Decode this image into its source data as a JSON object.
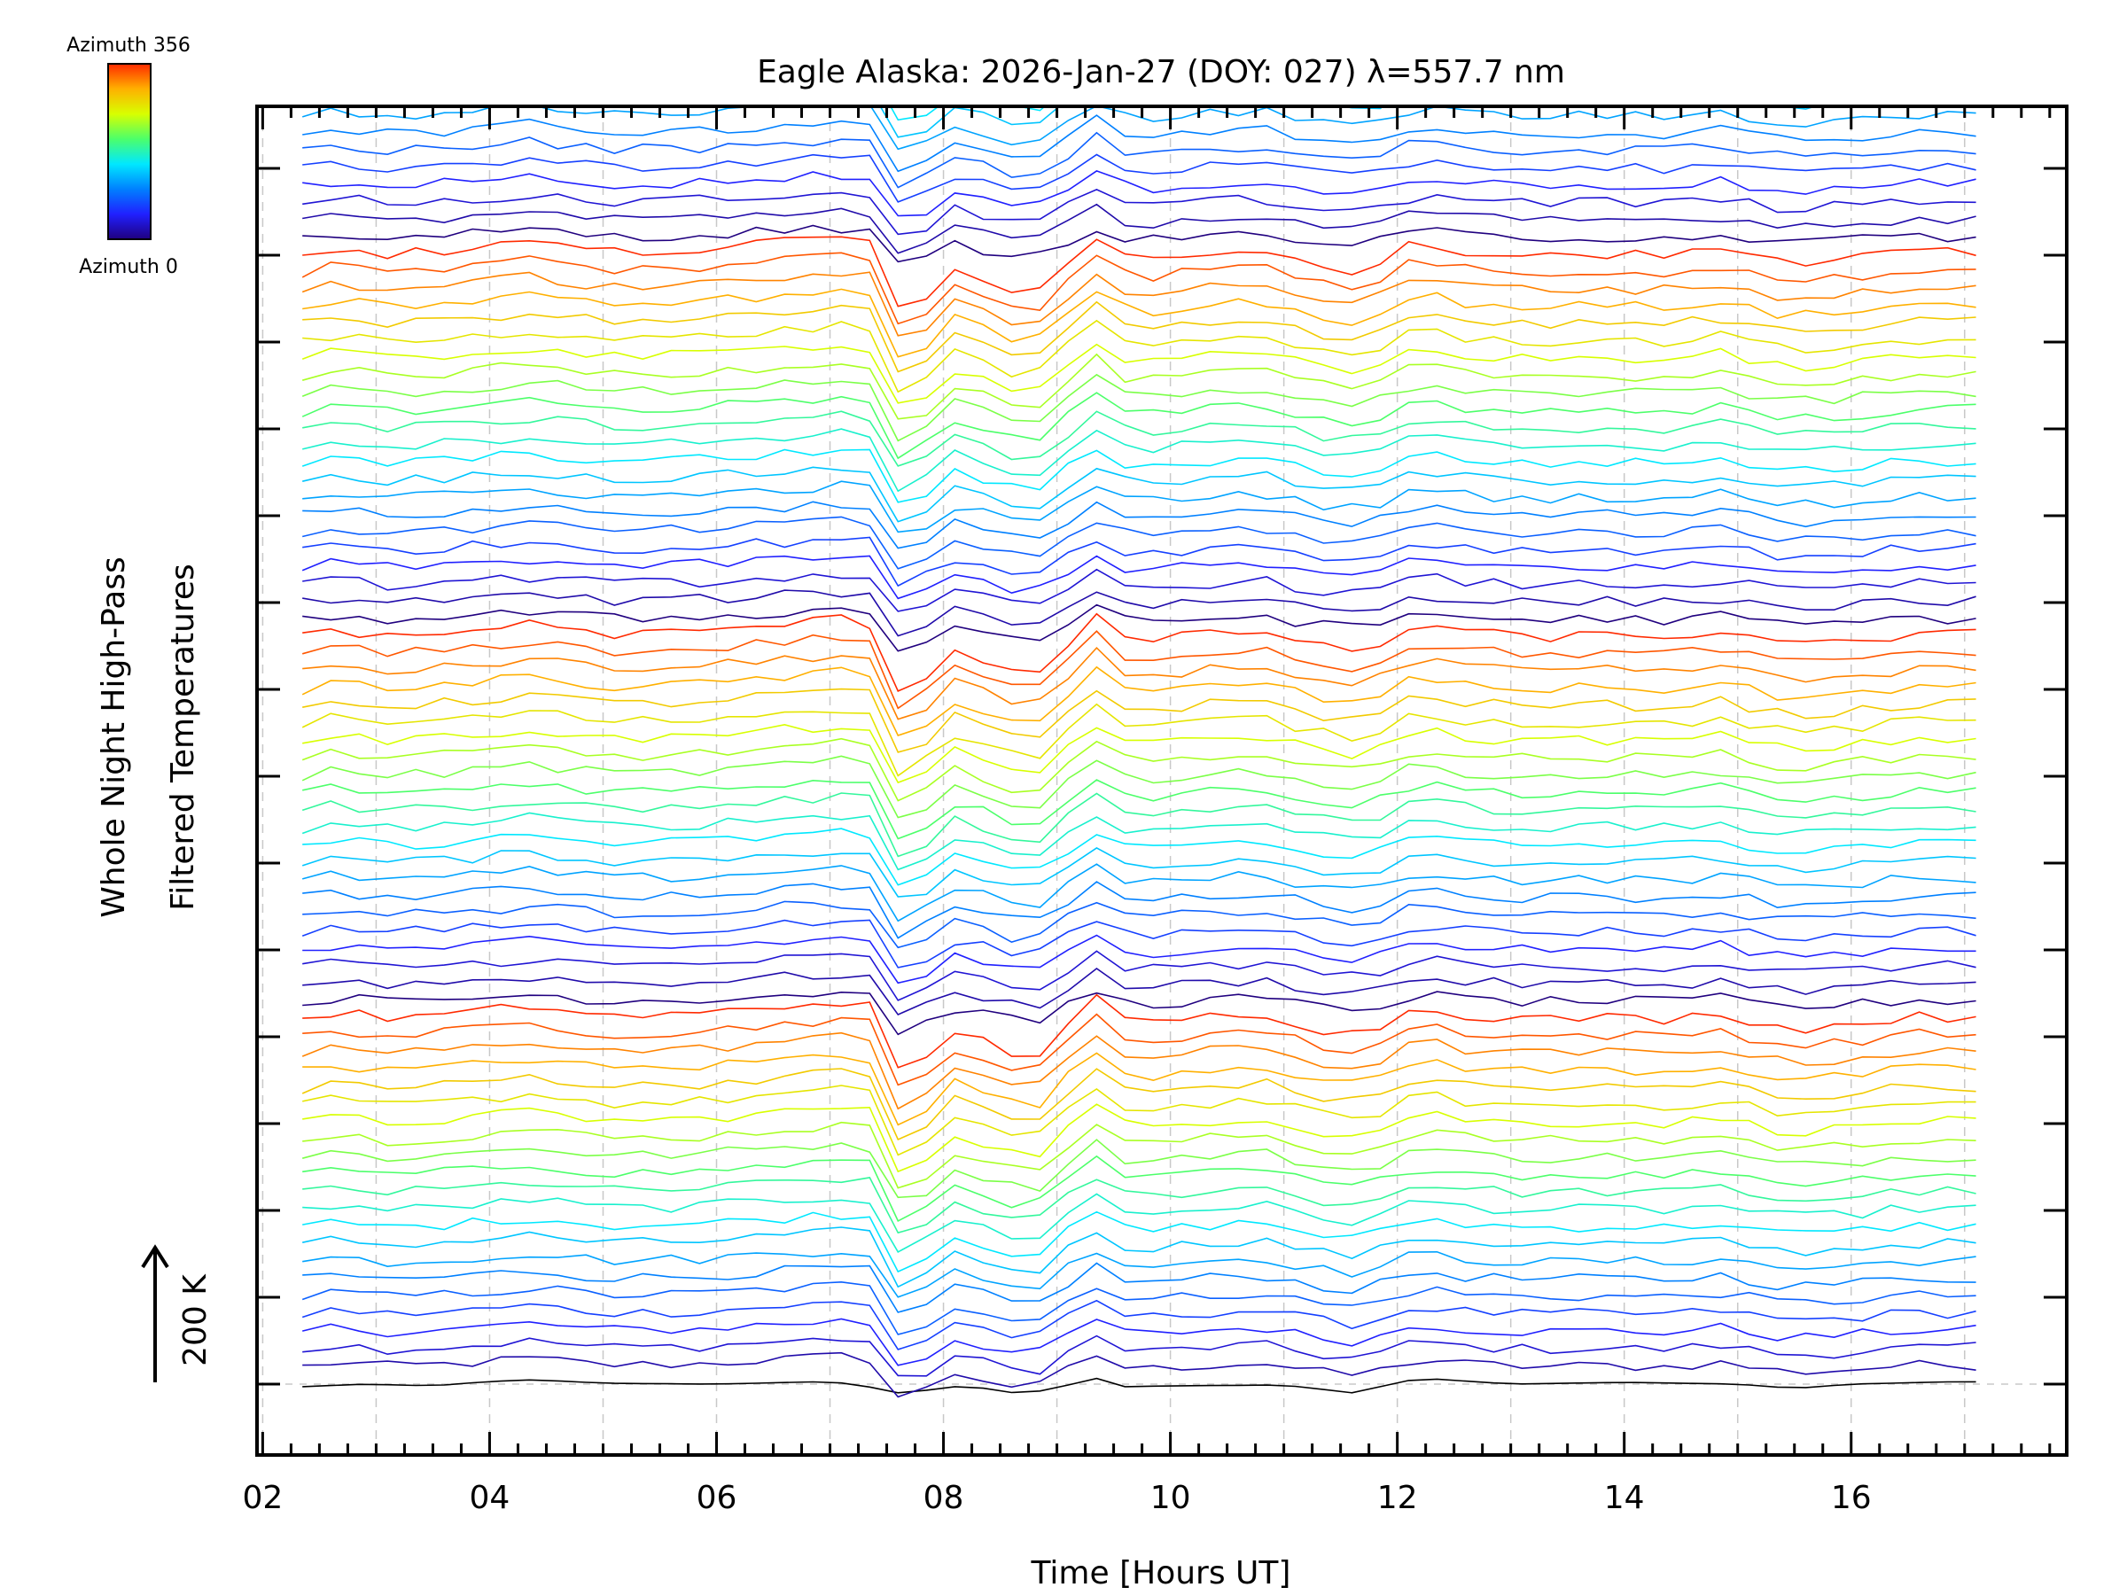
{
  "chart_data": {
    "type": "line",
    "title": "Eagle Alaska: 2026-Jan-27 (DOY: 027) λ=557.7 nm",
    "xlabel": "Time [Hours UT]",
    "ylabel_line1": "Whole Night High-Pass",
    "ylabel_line2": "Filtered Temperatures",
    "scale_label": "200 K",
    "xlim": [
      1.95,
      17.9
    ],
    "x_ticks": [
      {
        "value": 2,
        "label": "02"
      },
      {
        "value": 4,
        "label": "04"
      },
      {
        "value": 6,
        "label": "06"
      },
      {
        "value": 8,
        "label": "08"
      },
      {
        "value": 10,
        "label": "10"
      },
      {
        "value": 12,
        "label": "12"
      },
      {
        "value": 14,
        "label": "14"
      },
      {
        "value": 16,
        "label": "16"
      }
    ],
    "colorbar": {
      "top_label": "Azimuth 356",
      "bottom_label": "Azimuth 0",
      "colors": [
        "#ff2a00",
        "#ffb000",
        "#d8ff00",
        "#4cff6a",
        "#00e8ff",
        "#0080ff",
        "#2020ff",
        "#20007f"
      ]
    },
    "series_count": 90,
    "offset_per_series_K": 20,
    "t_start": 2.35,
    "t_end": 17.3,
    "t_step": 0.25,
    "profile_knots": {
      "t": [
        2.35,
        2.7,
        3.0,
        3.7,
        4.4,
        5.0,
        5.8,
        6.4,
        7.0,
        7.2,
        7.45,
        7.6,
        7.75,
        7.9,
        8.05,
        8.3,
        8.6,
        8.75,
        9.0,
        9.2,
        9.4,
        9.55,
        9.8,
        10.2,
        10.8,
        11.3,
        11.6,
        11.8,
        12.2,
        12.6,
        13.2,
        13.8,
        14.4,
        14.9,
        15.2,
        15.5,
        16.0,
        16.5,
        17.0,
        17.3
      ],
      "delta_K": [
        0,
        10,
        0,
        5,
        15,
        3,
        5,
        12,
        18,
        20,
        10,
        -55,
        -25,
        -50,
        -10,
        -20,
        -35,
        -45,
        -20,
        10,
        25,
        0,
        -5,
        2,
        8,
        -10,
        -15,
        -10,
        15,
        5,
        0,
        2,
        0,
        8,
        -5,
        -10,
        -5,
        3,
        2,
        5
      ]
    },
    "first_series_knots": {
      "t": [
        2.35,
        2.9,
        3.5,
        4.0,
        4.4,
        5.0,
        6.0,
        7.0,
        7.3,
        7.6,
        7.75,
        7.9,
        8.1,
        8.4,
        8.7,
        9.0,
        9.4,
        9.6,
        10.0,
        11.0,
        11.6,
        12.2,
        13.0,
        14.0,
        15.0,
        15.5,
        16.0,
        17.0,
        17.3
      ],
      "delta_K": [
        -3,
        0,
        -2,
        3,
        5,
        1,
        0,
        3,
        -2,
        -10,
        -5,
        -8,
        -3,
        -5,
        -12,
        -4,
        8,
        -3,
        -2,
        -1,
        -10,
        7,
        0,
        2,
        0,
        -5,
        0,
        3,
        2
      ]
    }
  }
}
